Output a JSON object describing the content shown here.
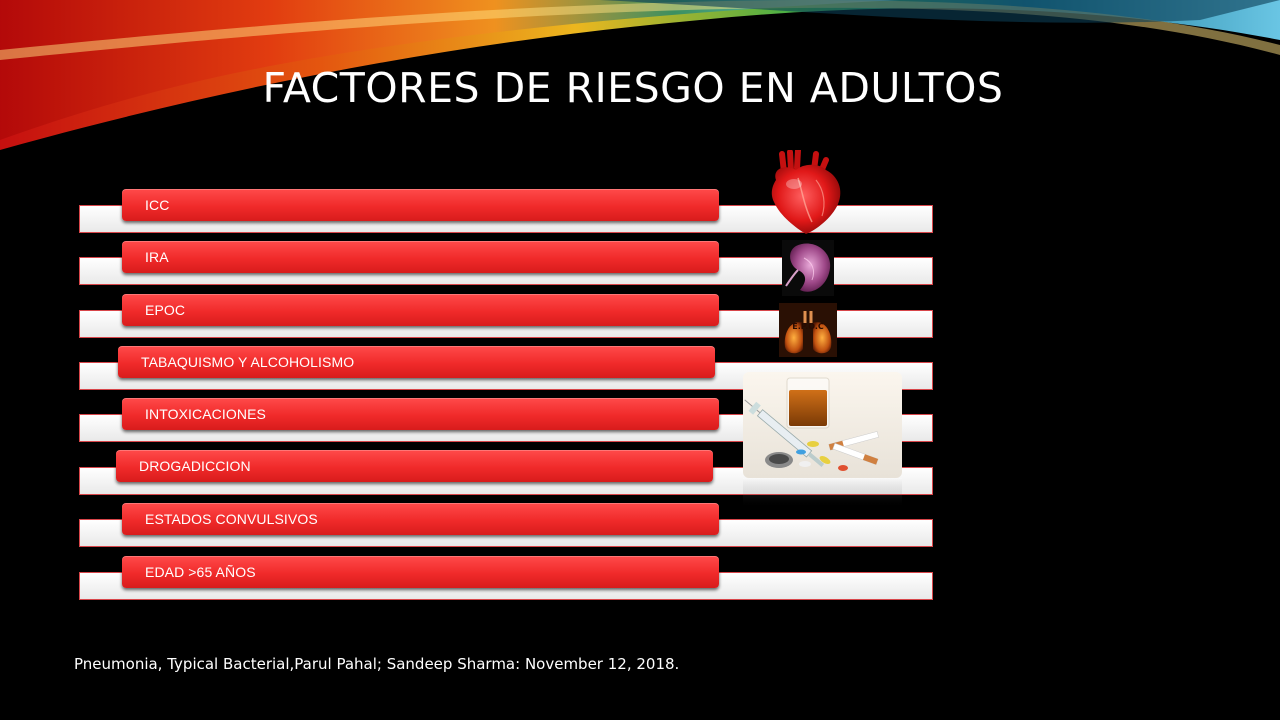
{
  "slide": {
    "title": "FACTORES DE RIESGO EN ADULTOS",
    "citation": "Pneumonia, Typical Bacterial,Parul Pahal; Sandeep Sharma: November 12, 2018."
  },
  "risk_factors": [
    {
      "label": "ICC"
    },
    {
      "label": "IRA"
    },
    {
      "label": "EPOC"
    },
    {
      "label": "TABAQUISMO Y ALCOHOLISMO"
    },
    {
      "label": "INTOXICACIONES"
    },
    {
      "label": "DROGADICCION"
    },
    {
      "label": "ESTADOS CONVULSIVOS"
    },
    {
      "label": "EDAD >65 AÑOS"
    }
  ],
  "images": {
    "heart": {
      "icon": "heart-image"
    },
    "kidney": {
      "icon": "kidney-image"
    },
    "lungs": {
      "icon": "lungs-image",
      "caption": "E.P.O.C"
    },
    "drugs": {
      "icon": "drugs-alcohol-image"
    }
  },
  "colors": {
    "background": "#000000",
    "pill": "#f02a2a",
    "band_border": "#d8464a",
    "text": "#ffffff"
  }
}
